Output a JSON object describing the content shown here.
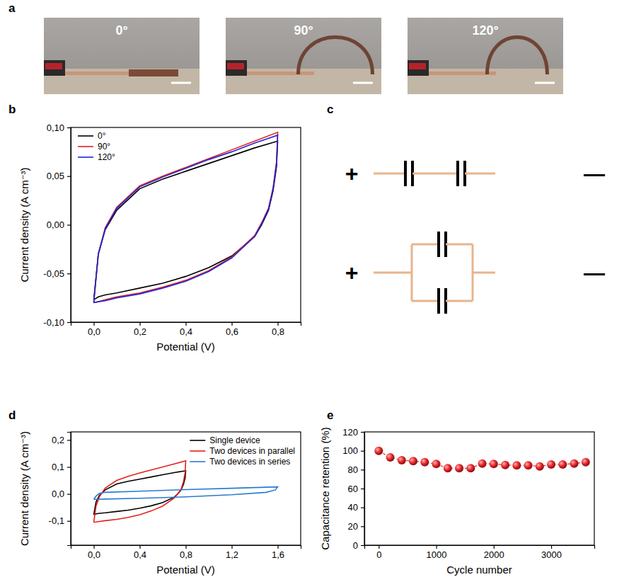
{
  "photos": {
    "panel": "a",
    "labels": [
      "0°",
      "90°",
      "120°"
    ]
  },
  "diagram": {
    "panel": "c",
    "positive": "+",
    "negative": "—",
    "circuits": [
      "series",
      "parallel"
    ]
  },
  "chart_data": [
    {
      "type": "line",
      "panel": "b",
      "x_label": "Potential (V)",
      "y_label": "Current density (A cm⁻³)",
      "xlim": [
        -0.1,
        0.9
      ],
      "ylim": [
        -0.1,
        0.1
      ],
      "xticks": [
        {
          "value": 0,
          "label": "0,0"
        },
        {
          "value": 0.2,
          "label": "0,2"
        },
        {
          "value": 0.4,
          "label": "0,4"
        },
        {
          "value": 0.6,
          "label": "0,6"
        },
        {
          "value": 0.8,
          "label": "0,8"
        }
      ],
      "yticks": [
        {
          "value": -0.1,
          "label": "-0,10"
        },
        {
          "value": -0.05,
          "label": "-0,05"
        },
        {
          "value": 0,
          "label": "0,00"
        },
        {
          "value": 0.05,
          "label": "0,05"
        },
        {
          "value": 0.1,
          "label": "0,10"
        }
      ],
      "legend": "upper left",
      "series": [
        {
          "name": "0°",
          "color": "#000000",
          "line_style": "solid",
          "x": [
            0,
            0.02,
            0.05,
            0.1,
            0.2,
            0.3,
            0.4,
            0.5,
            0.6,
            0.7,
            0.8,
            0.795,
            0.78,
            0.76,
            0.73,
            0.7,
            0.6,
            0.5,
            0.4,
            0.3,
            0.2,
            0.1,
            0.05,
            0.02,
            0
          ],
          "values": [
            -0.077,
            -0.03,
            -0.005,
            0.015,
            0.037,
            0.047,
            0.055,
            0.063,
            0.071,
            0.079,
            0.086,
            0.06,
            0.035,
            0.015,
            0,
            -0.012,
            -0.032,
            -0.044,
            -0.053,
            -0.06,
            -0.065,
            -0.07,
            -0.072,
            -0.074,
            -0.077
          ]
        },
        {
          "name": "90°",
          "color": "#e3201b",
          "line_style": "solid",
          "x": [
            0,
            0.02,
            0.05,
            0.1,
            0.2,
            0.3,
            0.4,
            0.5,
            0.6,
            0.7,
            0.8,
            0.795,
            0.78,
            0.76,
            0.73,
            0.7,
            0.6,
            0.5,
            0.4,
            0.3,
            0.2,
            0.1,
            0.05,
            0.02,
            0
          ],
          "values": [
            -0.08,
            -0.03,
            -0.003,
            0.018,
            0.04,
            0.05,
            0.059,
            0.068,
            0.077,
            0.086,
            0.095,
            0.065,
            0.038,
            0.017,
            0.002,
            -0.011,
            -0.033,
            -0.047,
            -0.057,
            -0.064,
            -0.07,
            -0.074,
            -0.077,
            -0.079,
            -0.08
          ]
        },
        {
          "name": "120°",
          "color": "#2424d8",
          "line_style": "solid",
          "x": [
            0,
            0.02,
            0.05,
            0.1,
            0.2,
            0.3,
            0.4,
            0.5,
            0.6,
            0.7,
            0.8,
            0.795,
            0.78,
            0.76,
            0.73,
            0.7,
            0.6,
            0.5,
            0.4,
            0.3,
            0.2,
            0.1,
            0.05,
            0.02,
            0
          ],
          "values": [
            -0.08,
            -0.03,
            -0.004,
            0.017,
            0.039,
            0.049,
            0.058,
            0.067,
            0.075,
            0.084,
            0.092,
            0.063,
            0.037,
            0.016,
            0.001,
            -0.012,
            -0.034,
            -0.048,
            -0.058,
            -0.065,
            -0.071,
            -0.075,
            -0.078,
            -0.079,
            -0.08
          ]
        }
      ]
    },
    {
      "type": "line",
      "panel": "d",
      "x_label": "Potential (V)",
      "y_label": "Current density (A cm⁻³)",
      "xlim": [
        -0.2,
        1.8
      ],
      "ylim": [
        -0.19,
        0.23
      ],
      "xticks": [
        {
          "value": 0,
          "label": "0,0"
        },
        {
          "value": 0.4,
          "label": "0,4"
        },
        {
          "value": 0.8,
          "label": "0,8"
        },
        {
          "value": 1.2,
          "label": "1,2"
        },
        {
          "value": 1.6,
          "label": "1,6"
        }
      ],
      "yticks": [
        {
          "value": -0.1,
          "label": "-0,1"
        },
        {
          "value": 0,
          "label": "0,0"
        },
        {
          "value": 0.1,
          "label": "0,1"
        },
        {
          "value": 0.2,
          "label": "0,2"
        }
      ],
      "legend": "upper right",
      "series": [
        {
          "name": "Single device",
          "color": "#000000",
          "line_style": "solid",
          "x": [
            0,
            0.02,
            0.05,
            0.1,
            0.2,
            0.3,
            0.4,
            0.5,
            0.6,
            0.7,
            0.8,
            0.795,
            0.78,
            0.76,
            0.73,
            0.7,
            0.6,
            0.5,
            0.4,
            0.3,
            0.2,
            0.1,
            0.05,
            0.02,
            0
          ],
          "values": [
            -0.077,
            -0.03,
            -0.005,
            0.015,
            0.037,
            0.047,
            0.055,
            0.063,
            0.071,
            0.079,
            0.086,
            0.06,
            0.035,
            0.015,
            0,
            -0.012,
            -0.032,
            -0.044,
            -0.053,
            -0.06,
            -0.065,
            -0.07,
            -0.072,
            -0.074,
            -0.077
          ]
        },
        {
          "name": "Two devices in parallel",
          "color": "#e3201b",
          "line_style": "solid",
          "x": [
            0,
            0.02,
            0.05,
            0.1,
            0.2,
            0.3,
            0.4,
            0.5,
            0.6,
            0.7,
            0.8,
            0.795,
            0.78,
            0.76,
            0.73,
            0.7,
            0.6,
            0.5,
            0.4,
            0.3,
            0.2,
            0.1,
            0.05,
            0.02,
            0
          ],
          "values": [
            -0.105,
            -0.045,
            -0.01,
            0.022,
            0.05,
            0.065,
            0.078,
            0.089,
            0.1,
            0.111,
            0.123,
            0.08,
            0.045,
            0.018,
            0,
            -0.015,
            -0.045,
            -0.063,
            -0.077,
            -0.087,
            -0.094,
            -0.099,
            -0.102,
            -0.104,
            -0.105
          ]
        },
        {
          "name": "Two devices in series",
          "color": "#2a7ad2",
          "line_style": "solid",
          "x": [
            0,
            0.02,
            0.05,
            0.1,
            0.4,
            0.8,
            1.2,
            1.5,
            1.6,
            1.58,
            1.5,
            1.2,
            0.8,
            0.4,
            0.1,
            0.03,
            0
          ],
          "values": [
            -0.02,
            -0.008,
            0.002,
            0.006,
            0.01,
            0.016,
            0.021,
            0.025,
            0.026,
            0.015,
            0.006,
            -0.003,
            -0.011,
            -0.016,
            -0.019,
            -0.02,
            -0.02
          ]
        }
      ]
    },
    {
      "type": "line",
      "panel": "e",
      "x_label": "Cycle number",
      "y_label": "Capacitance retention (%)",
      "xlim": [
        -250,
        3750
      ],
      "ylim": [
        0,
        120
      ],
      "xticks": [
        0,
        1000,
        2000,
        3000
      ],
      "yticks": [
        0,
        20,
        40,
        60,
        80,
        100,
        120
      ],
      "x": [
        0,
        200,
        400,
        600,
        800,
        1000,
        1200,
        1400,
        1600,
        1800,
        2000,
        2200,
        2400,
        2600,
        2800,
        3000,
        3200,
        3400,
        3600
      ],
      "series": [
        {
          "color": "#e8262a",
          "marker": "circle",
          "line_style": "dashed",
          "values": [
            100,
            93,
            90,
            89,
            88,
            86,
            81.5,
            81.5,
            81.5,
            86.5,
            86,
            85,
            84.5,
            84.5,
            83.5,
            85.5,
            85.5,
            86.5,
            88
          ]
        }
      ]
    }
  ]
}
